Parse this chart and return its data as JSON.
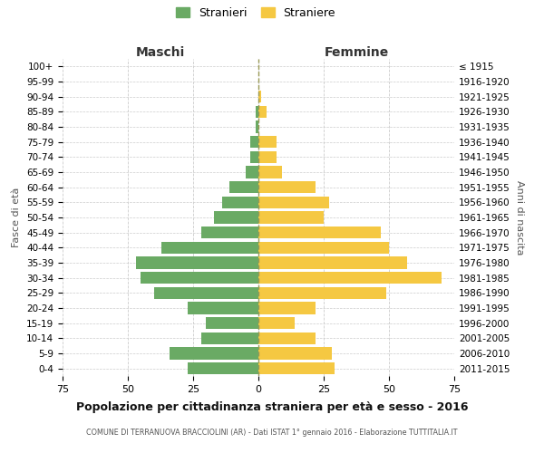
{
  "age_groups": [
    "100+",
    "95-99",
    "90-94",
    "85-89",
    "80-84",
    "75-79",
    "70-74",
    "65-69",
    "60-64",
    "55-59",
    "50-54",
    "45-49",
    "40-44",
    "35-39",
    "30-34",
    "25-29",
    "20-24",
    "15-19",
    "10-14",
    "5-9",
    "0-4"
  ],
  "birth_years": [
    "≤ 1915",
    "1916-1920",
    "1921-1925",
    "1926-1930",
    "1931-1935",
    "1936-1940",
    "1941-1945",
    "1946-1950",
    "1951-1955",
    "1956-1960",
    "1961-1965",
    "1966-1970",
    "1971-1975",
    "1976-1980",
    "1981-1985",
    "1986-1990",
    "1991-1995",
    "1996-2000",
    "2001-2005",
    "2006-2010",
    "2011-2015"
  ],
  "maschi": [
    0,
    0,
    0,
    1,
    1,
    3,
    3,
    5,
    11,
    14,
    17,
    22,
    37,
    47,
    45,
    40,
    27,
    20,
    22,
    34,
    27
  ],
  "femmine": [
    0,
    0,
    1,
    3,
    0,
    7,
    7,
    9,
    22,
    27,
    25,
    47,
    50,
    57,
    70,
    49,
    22,
    14,
    22,
    28,
    29
  ],
  "male_color": "#6aaa64",
  "female_color": "#f5c842",
  "bg_color": "#ffffff",
  "grid_color": "#cccccc",
  "title": "Popolazione per cittadinanza straniera per età e sesso - 2016",
  "subtitle": "COMUNE DI TERRANUOVA BRACCIOLINI (AR) - Dati ISTAT 1° gennaio 2016 - Elaborazione TUTTITALIA.IT",
  "xlabel_left": "Maschi",
  "xlabel_right": "Femmine",
  "ylabel_left": "Fasce di età",
  "ylabel_right": "Anni di nascita",
  "legend_male": "Stranieri",
  "legend_female": "Straniere",
  "xlim": 75,
  "bar_height": 0.8
}
